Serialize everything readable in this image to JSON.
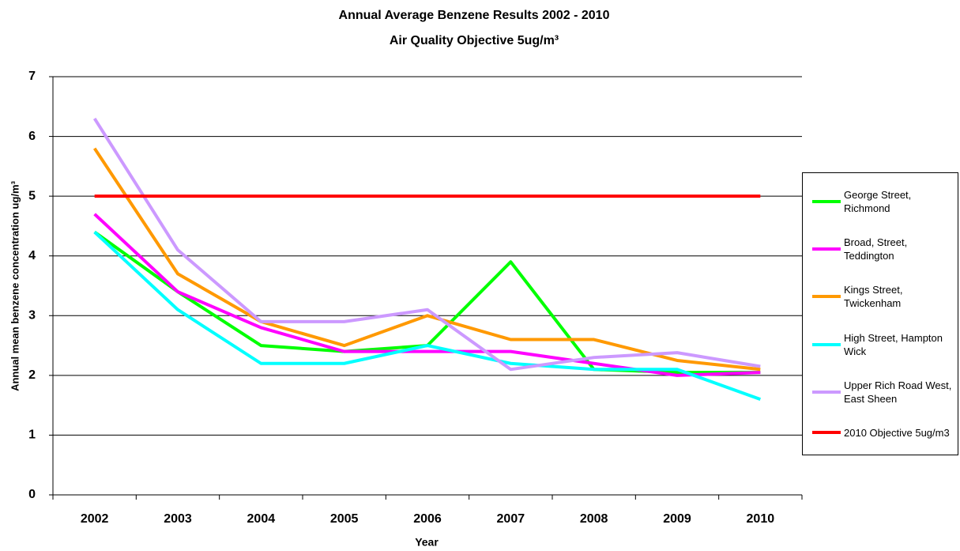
{
  "chart_data": {
    "type": "line",
    "title": [
      "Annual Average Benzene Results 2002 - 2010",
      "Air Quality Objective 5ug/m³"
    ],
    "x_label": "Year",
    "y_label": "Annual mean benzene concentration ug/m³",
    "categories": [
      "2002",
      "2003",
      "2004",
      "2005",
      "2006",
      "2007",
      "2008",
      "2009",
      "2010"
    ],
    "series": [
      {
        "name": "George Street, Richmond",
        "color": "#00ff00",
        "values": [
          4.4,
          3.4,
          2.5,
          2.4,
          2.5,
          3.9,
          2.1,
          2.05,
          2.05
        ]
      },
      {
        "name": "Broad, Street, Teddington",
        "color": "#ff00ff",
        "values": [
          4.7,
          3.4,
          2.8,
          2.4,
          2.4,
          2.4,
          2.2,
          2.0,
          2.05
        ]
      },
      {
        "name": "Kings Street, Twickenham",
        "color": "#ff9900",
        "values": [
          5.8,
          3.7,
          2.9,
          2.5,
          3.0,
          2.6,
          2.6,
          2.25,
          2.1
        ]
      },
      {
        "name": "High Street, Hampton Wick",
        "color": "#00ffff",
        "values": [
          4.4,
          3.1,
          2.2,
          2.2,
          2.5,
          2.2,
          2.1,
          2.1,
          1.6
        ]
      },
      {
        "name": "Upper Rich Road West, East Sheen",
        "color": "#cc99ff",
        "values": [
          6.3,
          4.1,
          2.9,
          2.9,
          3.1,
          2.1,
          2.3,
          2.38,
          2.15
        ]
      },
      {
        "name": "2010 Objective 5ug/m3",
        "color": "#ff0000",
        "values": [
          5,
          5,
          5,
          5,
          5,
          5,
          5,
          5,
          5
        ]
      }
    ],
    "ylim": [
      0,
      7
    ],
    "yticks": [
      0,
      1,
      2,
      3,
      4,
      5,
      6,
      7
    ],
    "grid": true,
    "legend": "right"
  }
}
